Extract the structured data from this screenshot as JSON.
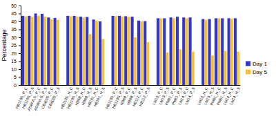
{
  "chart_data": {
    "type": "bar",
    "y_label": "Percentage",
    "categories": [
      "HB110S_P_C",
      "HB110S_P_S",
      "ADWVLS_P_C",
      "ADWVLS_P_S",
      "CB4025_P_C",
      "CB4025_P_S",
      null,
      "HB110S_H_C",
      "HB110S_H_S",
      "HB6B_H_C",
      "HB6B_H_S",
      "HB161_H_C",
      "HB161_H_S",
      null,
      "HB110S_P_C",
      "HB110S_P_S",
      "HB6B_P_C",
      "HB6B_P_S",
      "HB112_P_C",
      "HB112_P_S",
      null,
      "LM13_P_C",
      "LM13_P_S",
      "PM61_P_C",
      "PM61_P_S",
      "LM14_P_C",
      "LM14_P_S",
      null,
      "LM13_H_C",
      "LM13_H_S",
      "PM61_H_C",
      "PM61_H_S",
      "LM14_H_C",
      "LM14_H_S"
    ],
    "series": [
      {
        "name": "Day 1",
        "color": "#3135c9",
        "values": [
          43.5,
          43.5,
          45,
          44.8,
          42.5,
          42.2,
          null,
          43.5,
          43.5,
          43,
          42.8,
          41.2,
          40,
          null,
          43.5,
          43.5,
          43.3,
          43,
          40.5,
          40.2,
          null,
          42,
          42,
          42.5,
          43,
          42.5,
          42.5,
          null,
          41.5,
          41.5,
          42,
          42,
          42,
          42
        ]
      },
      {
        "name": "Day 5",
        "color": "#f5c03e",
        "values": [
          43.2,
          42.8,
          43.5,
          43,
          41.5,
          41,
          null,
          43.2,
          43,
          42.5,
          32,
          40.5,
          29,
          null,
          43.3,
          43,
          42.8,
          30,
          40,
          27,
          null,
          42,
          20.5,
          42,
          22.5,
          42,
          21,
          null,
          41,
          18.5,
          42,
          21.5,
          41.8,
          21
        ]
      }
    ],
    "ylim": [
      0,
      50
    ],
    "yticks": [
      0,
      5,
      10,
      15,
      20,
      25,
      30,
      35,
      40,
      45,
      50
    ],
    "legend": "right"
  }
}
